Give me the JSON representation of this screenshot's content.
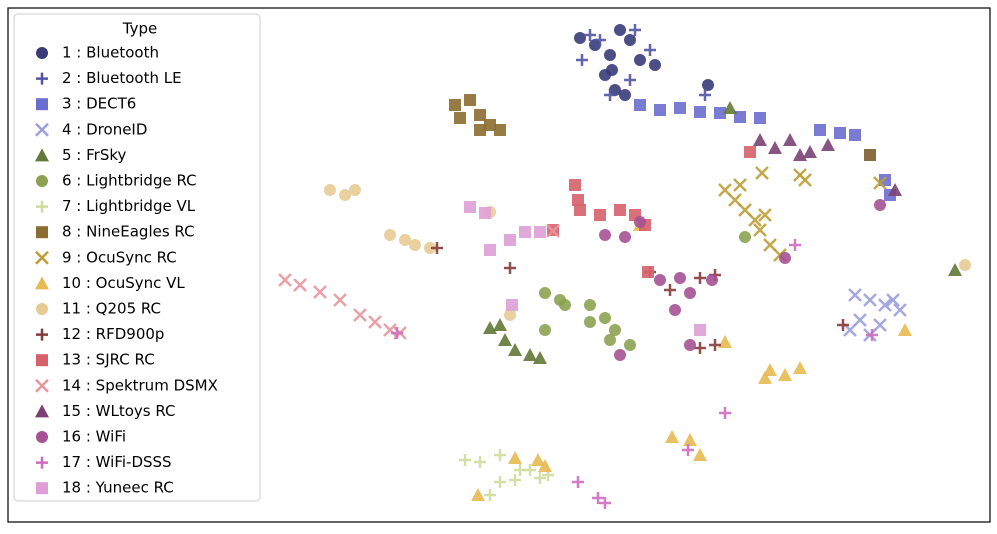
{
  "chart_data": {
    "type": "scatter",
    "legend_title": "Type",
    "legend_position": "upper left",
    "xlim": [
      8,
      990
    ],
    "ylim": [
      522,
      8
    ],
    "series": [
      {
        "name": "1 : Bluetooth",
        "color": "#393b79",
        "marker": "circle",
        "x": [
          580,
          595,
          610,
          620,
          630,
          605,
          615,
          640,
          655,
          625,
          708,
          612
        ],
        "y": [
          38,
          45,
          55,
          30,
          40,
          75,
          90,
          60,
          65,
          95,
          85,
          70
        ]
      },
      {
        "name": "2 : Bluetooth LE",
        "color": "#5254a3",
        "marker": "plus",
        "x": [
          582,
          590,
          600,
          635,
          650,
          610,
          705,
          630
        ],
        "y": [
          60,
          35,
          40,
          30,
          50,
          95,
          95,
          80
        ]
      },
      {
        "name": "3 : DECT6",
        "color": "#6b6ecf",
        "marker": "square",
        "x": [
          640,
          660,
          680,
          700,
          720,
          740,
          760,
          820,
          840,
          855,
          885,
          890,
          870
        ],
        "y": [
          105,
          110,
          108,
          112,
          113,
          117,
          118,
          130,
          133,
          135,
          180,
          195,
          155
        ]
      },
      {
        "name": "4 : DroneID",
        "color": "#9c9ede",
        "marker": "x",
        "x": [
          855,
          870,
          885,
          900,
          860,
          880,
          893,
          850,
          870
        ],
        "y": [
          295,
          300,
          305,
          310,
          320,
          325,
          300,
          330,
          335
        ]
      },
      {
        "name": "5 : FrSky",
        "color": "#637939",
        "marker": "triangle",
        "x": [
          490,
          505,
          515,
          530,
          540,
          500,
          730,
          955
        ],
        "y": [
          328,
          340,
          350,
          355,
          358,
          325,
          108,
          270
        ]
      },
      {
        "name": "6 : Lightbridge RC",
        "color": "#8ca252",
        "marker": "circle",
        "x": [
          545,
          560,
          565,
          590,
          605,
          615,
          630,
          610,
          590,
          745,
          545
        ],
        "y": [
          293,
          300,
          305,
          305,
          318,
          330,
          345,
          340,
          322,
          237,
          330
        ]
      },
      {
        "name": "7 : Lightbridge VL",
        "color": "#cedb9c",
        "marker": "plus",
        "x": [
          465,
          480,
          500,
          520,
          540,
          500,
          490,
          515,
          530,
          548
        ],
        "y": [
          460,
          462,
          455,
          470,
          478,
          482,
          495,
          480,
          470,
          475
        ]
      },
      {
        "name": "8 : NineEagles RC",
        "color": "#8c6d31",
        "marker": "square",
        "x": [
          455,
          470,
          480,
          490,
          500,
          460,
          480,
          870
        ],
        "y": [
          105,
          100,
          115,
          125,
          130,
          118,
          130,
          155
        ]
      },
      {
        "name": "9 : OcuSync RC",
        "color": "#bd9e39",
        "marker": "x",
        "x": [
          725,
          735,
          745,
          755,
          760,
          770,
          740,
          765,
          800,
          805,
          780,
          762,
          880
        ],
        "y": [
          190,
          200,
          210,
          220,
          230,
          245,
          185,
          215,
          175,
          180,
          255,
          173,
          183
        ]
      },
      {
        "name": "10 : OcuSync VL",
        "color": "#e7ba52",
        "marker": "triangle",
        "x": [
          770,
          785,
          800,
          765,
          690,
          672,
          700,
          478,
          515,
          538,
          545,
          725,
          905,
          640
        ],
        "y": [
          370,
          375,
          368,
          378,
          440,
          437,
          455,
          495,
          458,
          460,
          466,
          342,
          330,
          225
        ]
      },
      {
        "name": "11 : Q205 RC",
        "color": "#e7cb94",
        "marker": "circle",
        "x": [
          330,
          345,
          355,
          390,
          405,
          415,
          430,
          510,
          490,
          965
        ],
        "y": [
          190,
          195,
          190,
          235,
          240,
          245,
          248,
          315,
          212,
          265
        ]
      },
      {
        "name": "12 : RFD900p",
        "color": "#843c39",
        "marker": "plus",
        "x": [
          437,
          510,
          670,
          700,
          715,
          700,
          715,
          843,
          650
        ],
        "y": [
          248,
          268,
          290,
          278,
          275,
          348,
          345,
          325,
          272
        ]
      },
      {
        "name": "13 : SJRC RC",
        "color": "#d6616b",
        "marker": "square",
        "x": [
          575,
          578,
          580,
          600,
          620,
          635,
          645,
          750,
          553,
          648
        ],
        "y": [
          185,
          200,
          210,
          215,
          210,
          215,
          225,
          152,
          230,
          272
        ]
      },
      {
        "name": "14 : Spektrum DSMX",
        "color": "#e7969c",
        "marker": "x",
        "x": [
          285,
          300,
          320,
          340,
          360,
          375,
          390,
          400,
          553
        ],
        "y": [
          280,
          285,
          292,
          300,
          315,
          322,
          330,
          333,
          231
        ]
      },
      {
        "name": "15 : WLtoys RC",
        "color": "#7b4173",
        "marker": "triangle",
        "x": [
          760,
          775,
          790,
          800,
          810,
          828,
          895
        ],
        "y": [
          140,
          148,
          140,
          155,
          152,
          145,
          190
        ]
      },
      {
        "name": "16 : WiFi",
        "color": "#a55194",
        "marker": "circle",
        "x": [
          605,
          625,
          640,
          660,
          680,
          690,
          675,
          712,
          690,
          785,
          880,
          620
        ],
        "y": [
          235,
          237,
          222,
          280,
          278,
          293,
          310,
          280,
          345,
          258,
          205,
          355
        ]
      },
      {
        "name": "17 : WiFi-DSSS",
        "color": "#ce6dbd",
        "marker": "plus",
        "x": [
          795,
          725,
          688,
          578,
          598,
          605,
          872,
          397
        ],
        "y": [
          245,
          413,
          450,
          482,
          498,
          503,
          335,
          333
        ]
      },
      {
        "name": "18 : Yuneec RC",
        "color": "#de9ed6",
        "marker": "square",
        "x": [
          470,
          485,
          490,
          510,
          525,
          540,
          700,
          512
        ],
        "y": [
          207,
          213,
          250,
          240,
          232,
          232,
          330,
          305
        ]
      }
    ]
  }
}
